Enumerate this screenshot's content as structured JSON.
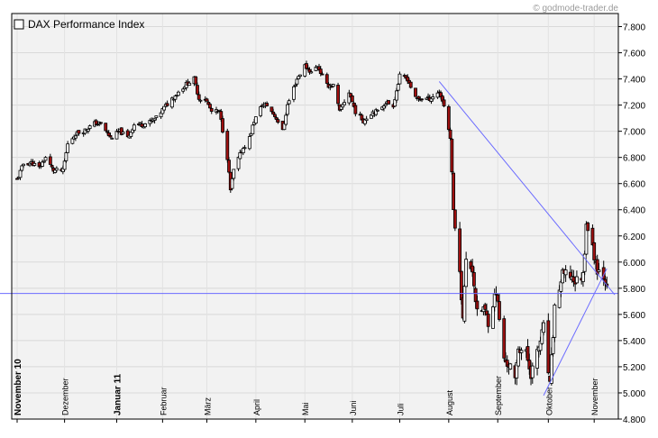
{
  "watermark": "© godmode-trader.de",
  "chart_data": {
    "type": "candlestick",
    "title": "DAX Performance Index",
    "ylim": [
      4800,
      7900
    ],
    "y_ticks": [
      "7.800",
      "7.600",
      "7.400",
      "7.200",
      "7.000",
      "6.800",
      "6.600",
      "6.400",
      "6.200",
      "6.000",
      "5.800",
      "5.600",
      "5.400",
      "5.200",
      "5.000",
      "4.800"
    ],
    "y_tick_values": [
      7800,
      7600,
      7400,
      7200,
      7000,
      6800,
      6600,
      6400,
      6200,
      6000,
      5800,
      5600,
      5400,
      5200,
      5000,
      4800
    ],
    "x_range": [
      "2010-11-01",
      "2011-11-14"
    ],
    "x_labels": [
      {
        "label": "November 10",
        "date": "2010-11-01",
        "bold": true
      },
      {
        "label": "Dezember",
        "date": "2010-12-01",
        "bold": false
      },
      {
        "label": "Januar 11",
        "date": "2011-01-03",
        "bold": true
      },
      {
        "label": "Februar",
        "date": "2011-02-01",
        "bold": false
      },
      {
        "label": "März",
        "date": "2011-03-01",
        "bold": false
      },
      {
        "label": "April",
        "date": "2011-04-01",
        "bold": false
      },
      {
        "label": "Mai",
        "date": "2011-05-02",
        "bold": false
      },
      {
        "label": "Juni",
        "date": "2011-06-01",
        "bold": false
      },
      {
        "label": "Juli",
        "date": "2011-07-01",
        "bold": false
      },
      {
        "label": "August",
        "date": "2011-08-01",
        "bold": false
      },
      {
        "label": "September",
        "date": "2011-09-01",
        "bold": false
      },
      {
        "label": "Oktober",
        "date": "2011-10-03",
        "bold": false
      },
      {
        "label": "November",
        "date": "2011-11-01",
        "bold": false
      }
    ],
    "grid": true,
    "legend_position": "top-left",
    "series_close": [
      [
        "2010-11-01",
        6630
      ],
      [
        "2010-11-05",
        6750
      ],
      [
        "2010-11-10",
        6760
      ],
      [
        "2010-11-15",
        6720
      ],
      [
        "2010-11-19",
        6800
      ],
      [
        "2010-11-24",
        6700
      ],
      [
        "2010-11-30",
        6700
      ],
      [
        "2010-12-03",
        6900
      ],
      [
        "2010-12-08",
        6980
      ],
      [
        "2010-12-14",
        7010
      ],
      [
        "2010-12-20",
        7060
      ],
      [
        "2010-12-24",
        7060
      ],
      [
        "2010-12-30",
        6950
      ],
      [
        "2011-01-05",
        7000
      ],
      [
        "2011-01-10",
        6950
      ],
      [
        "2011-01-14",
        7050
      ],
      [
        "2011-01-19",
        7050
      ],
      [
        "2011-01-24",
        7070
      ],
      [
        "2011-01-28",
        7100
      ],
      [
        "2011-02-02",
        7180
      ],
      [
        "2011-02-07",
        7250
      ],
      [
        "2011-02-11",
        7300
      ],
      [
        "2011-02-16",
        7360
      ],
      [
        "2011-02-21",
        7400
      ],
      [
        "2011-02-24",
        7250
      ],
      [
        "2011-02-28",
        7250
      ],
      [
        "2011-03-04",
        7150
      ],
      [
        "2011-03-09",
        7150
      ],
      [
        "2011-03-14",
        6800
      ],
      [
        "2011-03-16",
        6550
      ],
      [
        "2011-03-18",
        6700
      ],
      [
        "2011-03-23",
        6850
      ],
      [
        "2011-03-28",
        6950
      ],
      [
        "2011-03-31",
        7080
      ],
      [
        "2011-04-05",
        7200
      ],
      [
        "2011-04-08",
        7200
      ],
      [
        "2011-04-14",
        7100
      ],
      [
        "2011-04-18",
        7000
      ],
      [
        "2011-04-21",
        7200
      ],
      [
        "2011-04-27",
        7400
      ],
      [
        "2011-05-02",
        7500
      ],
      [
        "2011-05-06",
        7450
      ],
      [
        "2011-05-10",
        7500
      ],
      [
        "2011-05-16",
        7350
      ],
      [
        "2011-05-20",
        7350
      ],
      [
        "2011-05-24",
        7150
      ],
      [
        "2011-05-30",
        7300
      ],
      [
        "2011-06-03",
        7150
      ],
      [
        "2011-06-08",
        7080
      ],
      [
        "2011-06-14",
        7150
      ],
      [
        "2011-06-17",
        7150
      ],
      [
        "2011-06-22",
        7220
      ],
      [
        "2011-06-27",
        7200
      ],
      [
        "2011-07-01",
        7420
      ],
      [
        "2011-07-06",
        7400
      ],
      [
        "2011-07-11",
        7250
      ],
      [
        "2011-07-15",
        7250
      ],
      [
        "2011-07-20",
        7250
      ],
      [
        "2011-07-26",
        7300
      ],
      [
        "2011-07-29",
        7200
      ],
      [
        "2011-08-02",
        6950
      ],
      [
        "2011-08-04",
        6400
      ],
      [
        "2011-08-08",
        5900
      ],
      [
        "2011-08-10",
        5600
      ],
      [
        "2011-08-12",
        6000
      ],
      [
        "2011-08-16",
        5950
      ],
      [
        "2011-08-19",
        5600
      ],
      [
        "2011-08-23",
        5650
      ],
      [
        "2011-08-26",
        5550
      ],
      [
        "2011-08-31",
        5780
      ],
      [
        "2011-09-05",
        5250
      ],
      [
        "2011-09-09",
        5200
      ],
      [
        "2011-09-12",
        5080
      ],
      [
        "2011-09-14",
        5350
      ],
      [
        "2011-09-19",
        5300
      ],
      [
        "2011-09-22",
        5150
      ],
      [
        "2011-09-26",
        5300
      ],
      [
        "2011-09-30",
        5500
      ],
      [
        "2011-10-04",
        5050
      ],
      [
        "2011-10-07",
        5650
      ],
      [
        "2011-10-12",
        5900
      ],
      [
        "2011-10-17",
        5900
      ],
      [
        "2011-10-20",
        5850
      ],
      [
        "2011-10-25",
        5900
      ],
      [
        "2011-10-27",
        6300
      ],
      [
        "2011-10-31",
        6100
      ],
      [
        "2011-11-03",
        5950
      ],
      [
        "2011-11-07",
        5900
      ],
      [
        "2011-11-09",
        5850
      ]
    ],
    "horizontal_line": {
      "value": 5760
    },
    "trendlines": [
      {
        "from": [
          "2011-07-26",
          7380
        ],
        "to": [
          "2011-11-14",
          5750
        ]
      },
      {
        "from": [
          "2011-09-30",
          4980
        ],
        "to": [
          "2011-11-09",
          5950
        ]
      }
    ]
  }
}
